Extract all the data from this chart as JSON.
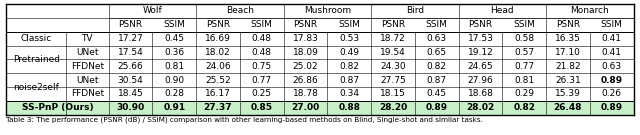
{
  "categories": [
    "Wolf",
    "Beach",
    "Mushroom",
    "Bird",
    "Head",
    "Monarch"
  ],
  "col_headers": [
    "PSNR",
    "SSIM",
    "PSNR",
    "SSIM",
    "PSNR",
    "SSIM",
    "PSNR",
    "SSIM",
    "PSNR",
    "SSIM",
    "PSNR",
    "SSIM"
  ],
  "row_groups": [
    {
      "group": "Classic",
      "method": "TV",
      "values": [
        "17.27",
        "0.45",
        "16.69",
        "0.48",
        "17.83",
        "0.53",
        "18.72",
        "0.63",
        "17.53",
        "0.58",
        "16.35",
        "0.41"
      ],
      "bold": [
        false,
        false,
        false,
        false,
        false,
        false,
        false,
        false,
        false,
        false,
        false,
        false
      ]
    },
    {
      "group": "Pretrained",
      "method": "UNet",
      "values": [
        "17.54",
        "0.36",
        "18.02",
        "0.48",
        "18.09",
        "0.49",
        "19.54",
        "0.65",
        "19.12",
        "0.57",
        "17.10",
        "0.41"
      ],
      "bold": [
        false,
        false,
        false,
        false,
        false,
        false,
        false,
        false,
        false,
        false,
        false,
        false
      ]
    },
    {
      "group": "Pretrained",
      "method": "FFDNet",
      "values": [
        "25.66",
        "0.81",
        "24.06",
        "0.75",
        "25.02",
        "0.82",
        "24.30",
        "0.82",
        "24.65",
        "0.77",
        "21.82",
        "0.63"
      ],
      "bold": [
        false,
        false,
        false,
        false,
        false,
        false,
        false,
        false,
        false,
        false,
        false,
        false
      ]
    },
    {
      "group": "noise2self",
      "method": "UNet",
      "values": [
        "30.54",
        "0.90",
        "25.52",
        "0.77",
        "26.86",
        "0.87",
        "27.75",
        "0.87",
        "27.96",
        "0.81",
        "26.31",
        "0.89"
      ],
      "bold": [
        false,
        false,
        false,
        false,
        false,
        false,
        false,
        false,
        false,
        false,
        false,
        true
      ]
    },
    {
      "group": "noise2self",
      "method": "FFDNet",
      "values": [
        "18.45",
        "0.28",
        "16.17",
        "0.25",
        "18.78",
        "0.34",
        "18.15",
        "0.45",
        "18.68",
        "0.29",
        "15.39",
        "0.26"
      ],
      "bold": [
        false,
        false,
        false,
        false,
        false,
        false,
        false,
        false,
        false,
        false,
        false,
        false
      ]
    },
    {
      "group": "SS-PnP (Ours)",
      "method": "",
      "values": [
        "30.90",
        "0.91",
        "27.37",
        "0.85",
        "27.00",
        "0.88",
        "28.20",
        "0.89",
        "28.02",
        "0.82",
        "26.48",
        "0.89"
      ],
      "bold": [
        true,
        true,
        true,
        true,
        true,
        true,
        true,
        true,
        true,
        true,
        true,
        true
      ]
    }
  ],
  "highlight_row_idx": 5,
  "highlight_color": "#c8f0c8",
  "caption": "Table 3: The performance (PSNR (dB) / SSIM) comparison with other learning-based methods on Blind, Single-shot and similar tasks.",
  "background_color": "#ffffff",
  "font_size": 6.5,
  "caption_font_size": 5.2
}
